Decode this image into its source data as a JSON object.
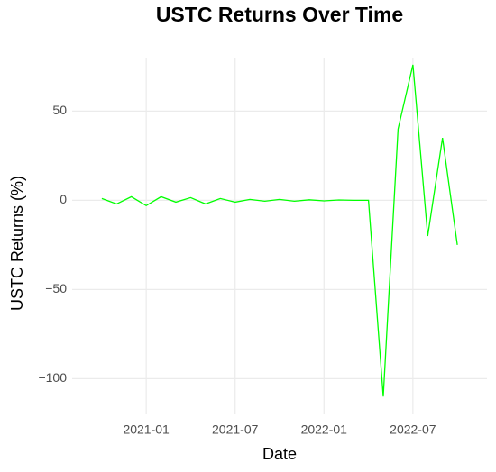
{
  "chart_data": {
    "type": "line",
    "title": "USTC Returns Over Time",
    "x_label": "Date",
    "y_label": "USTC Returns (%)",
    "x": [
      "2020-10",
      "2020-11",
      "2020-12",
      "2021-01",
      "2021-02",
      "2021-03",
      "2021-04",
      "2021-05",
      "2021-06",
      "2021-07",
      "2021-08",
      "2021-09",
      "2021-10",
      "2021-11",
      "2021-12",
      "2022-01",
      "2022-02",
      "2022-03",
      "2022-04",
      "2022-05",
      "2022-06",
      "2022-07",
      "2022-08",
      "2022-09",
      "2022-10"
    ],
    "series": [
      {
        "name": "USTC Returns",
        "color": "#00ff00",
        "values": [
          1,
          -2,
          2,
          -3,
          2,
          -1,
          1.5,
          -2,
          1,
          -1,
          0.5,
          -0.5,
          0.5,
          -0.5,
          0.3,
          -0.3,
          0.2,
          0,
          0,
          -110,
          40,
          76,
          -20,
          35,
          -25
        ]
      }
    ],
    "xlim": [
      "2020-08",
      "2022-12"
    ],
    "xticks": [
      "2021-01",
      "2021-07",
      "2022-01",
      "2022-07"
    ],
    "ylim": [
      -120,
      80
    ],
    "yticks": [
      {
        "value": -100,
        "label": "−100"
      },
      {
        "value": -50,
        "label": "−50"
      },
      0,
      50
    ],
    "grid": true
  }
}
